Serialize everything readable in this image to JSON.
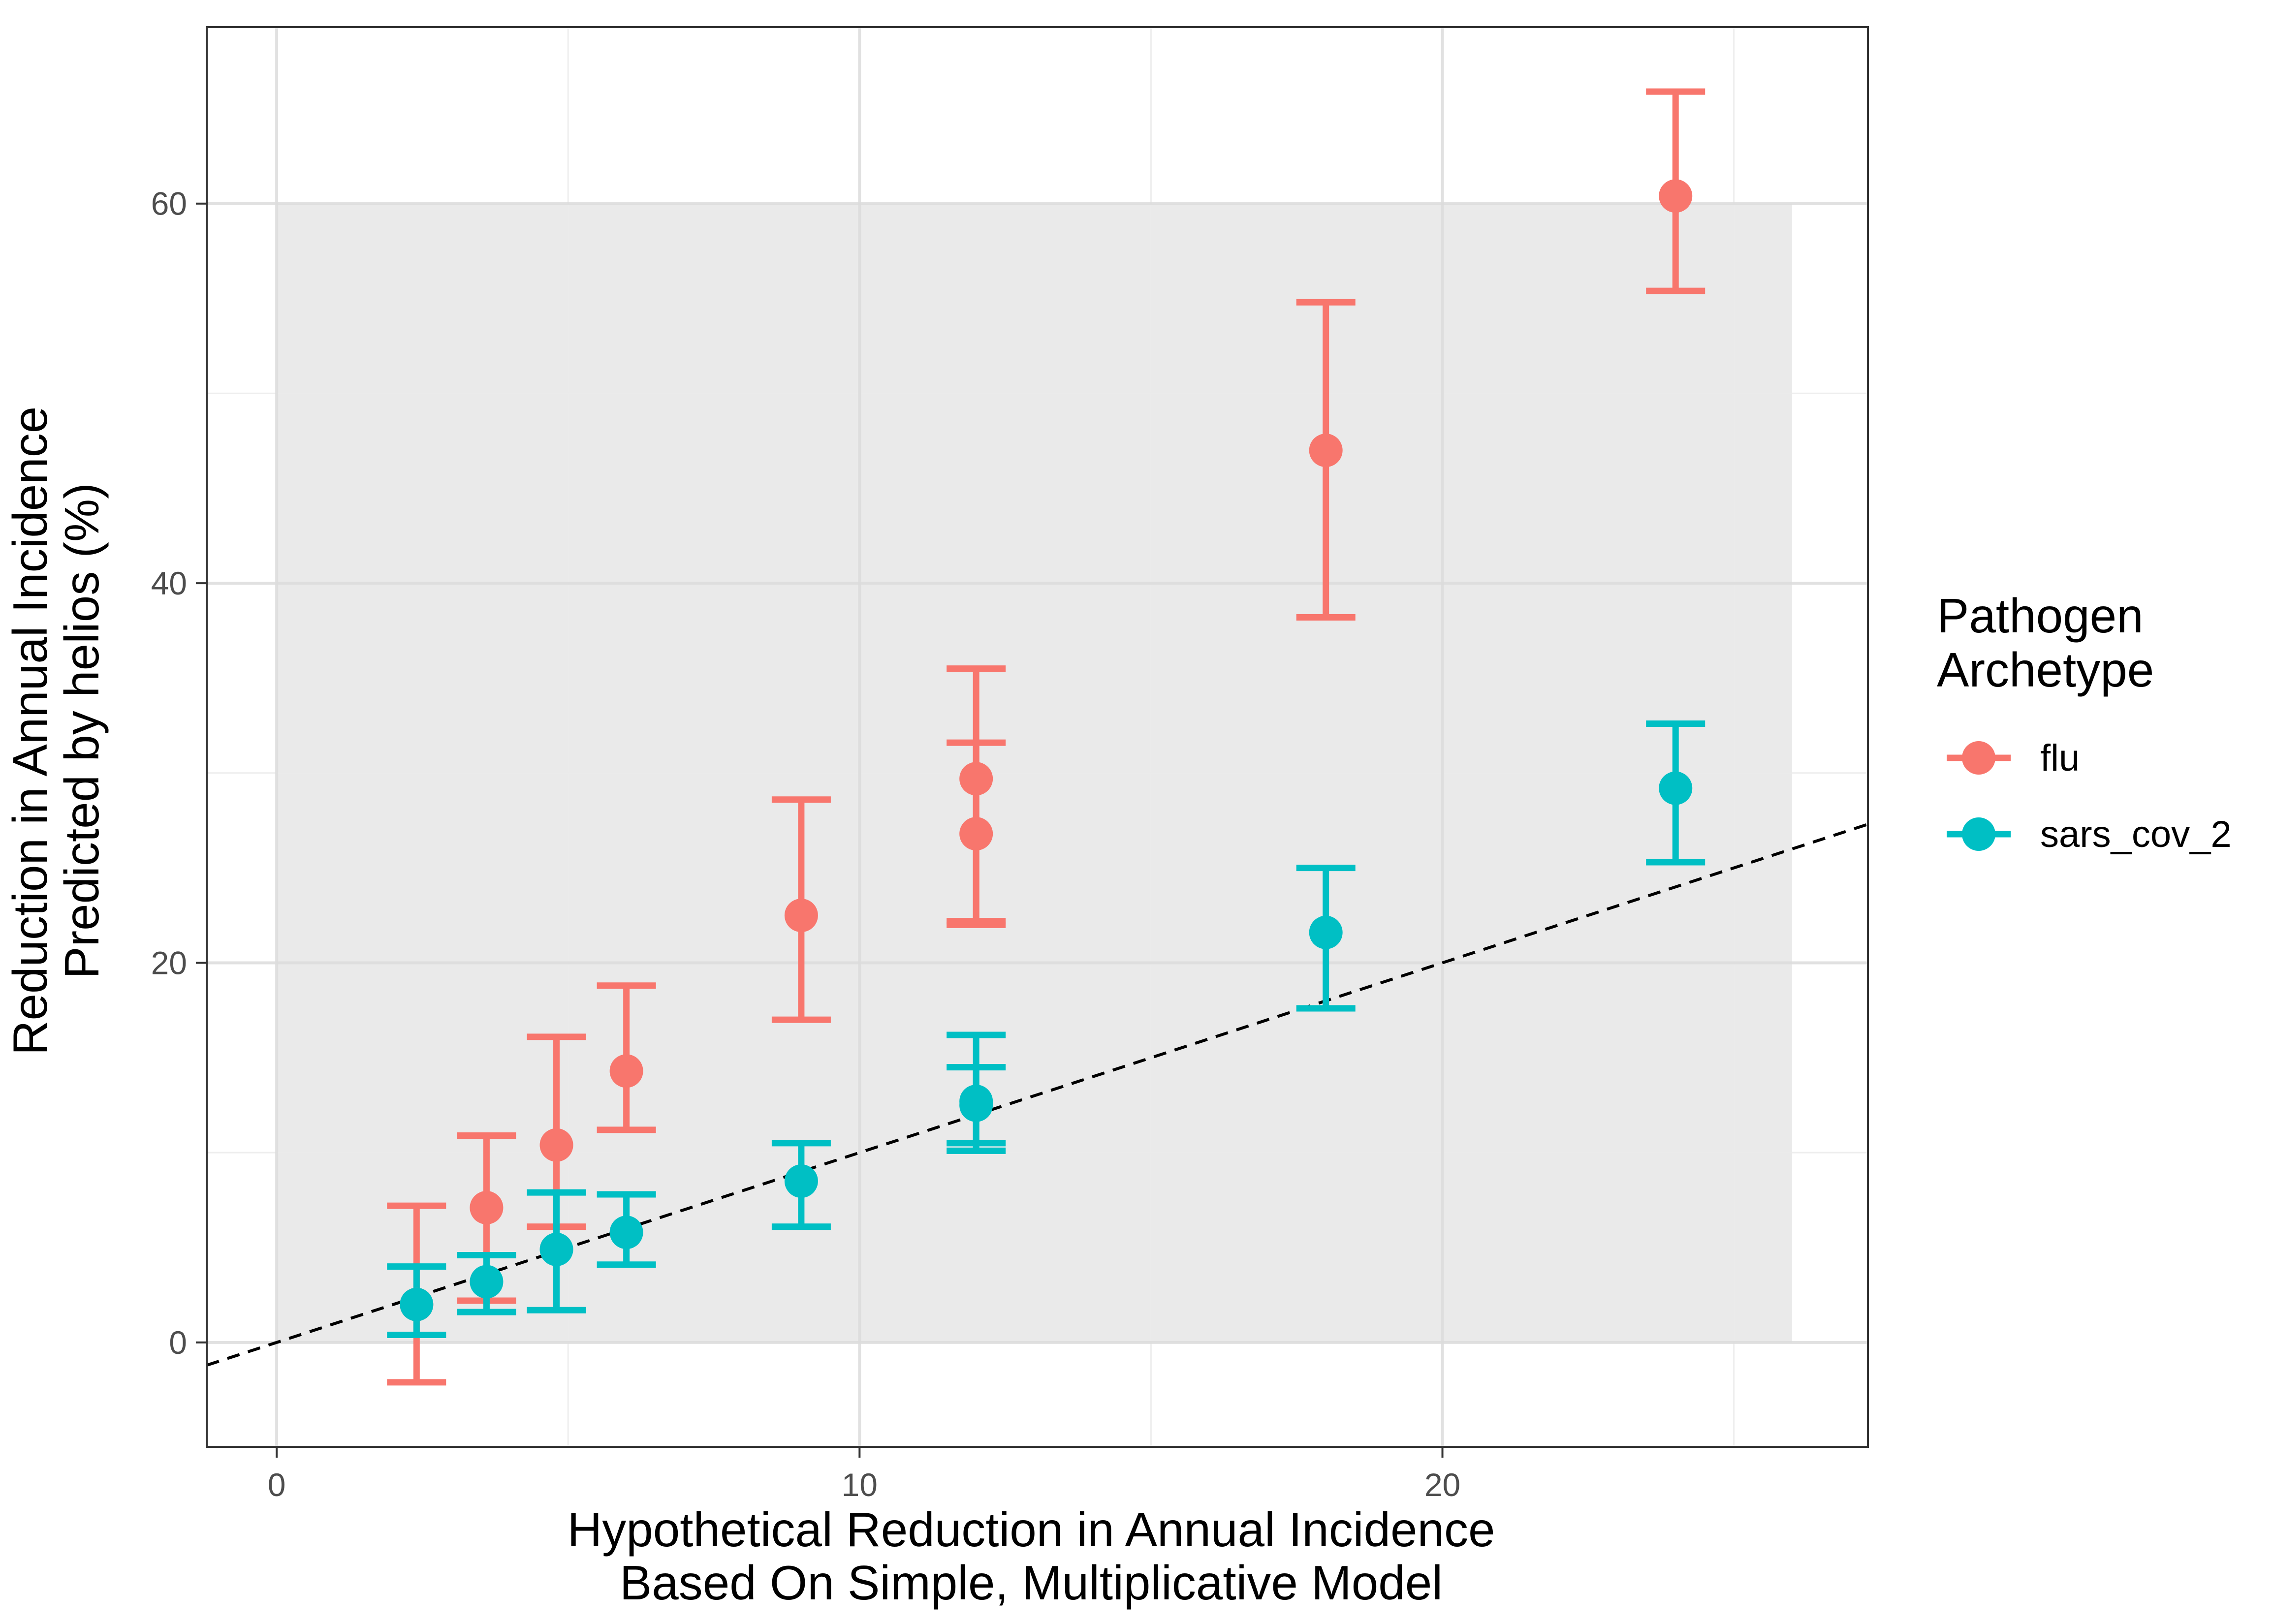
{
  "chart_data": {
    "type": "scatter",
    "xlabel": [
      "Hypothetical Reduction in Annual Incidence",
      "Based On Simple, Multiplicative Model"
    ],
    "ylabel": [
      "Reduction in Annual Incidence",
      "Predicted by helios (%)"
    ],
    "xlim": [
      -1.2,
      27.3
    ],
    "ylim": [
      -5.5,
      69.3
    ],
    "x_ticks": [
      0,
      10,
      20
    ],
    "y_ticks": [
      0,
      20,
      40,
      60
    ],
    "x_tick_labels": [
      "0",
      "10",
      "20"
    ],
    "y_tick_labels": [
      "0",
      "20",
      "40",
      "60"
    ],
    "grid": true,
    "shaded_region": {
      "x": [
        0,
        26
      ],
      "y": [
        0,
        60
      ],
      "color": "#e8e8e8"
    },
    "reference_line": {
      "type": "identity",
      "slope": 1,
      "intercept": 0,
      "style": "dashed",
      "color": "#000000"
    },
    "legend": {
      "title": [
        "Pathogen",
        "Archetype"
      ],
      "placement": "right"
    },
    "series": [
      {
        "name": "flu",
        "color": "#F8766D",
        "points": [
          {
            "x": 2.4,
            "y": 2.0,
            "ymin": -2.1,
            "ymax": 7.2
          },
          {
            "x": 3.6,
            "y": 7.1,
            "ymin": 2.2,
            "ymax": 10.9
          },
          {
            "x": 4.8,
            "y": 10.4,
            "ymin": 6.1,
            "ymax": 16.1
          },
          {
            "x": 6.0,
            "y": 14.3,
            "ymin": 11.2,
            "ymax": 18.8
          },
          {
            "x": 9.0,
            "y": 22.5,
            "ymin": 17.0,
            "ymax": 28.6
          },
          {
            "x": 12.0,
            "y": 26.8,
            "ymin": 22.0,
            "ymax": 31.6
          },
          {
            "x": 12.0,
            "y": 29.7,
            "ymin": 22.2,
            "ymax": 35.5
          },
          {
            "x": 18.0,
            "y": 47.0,
            "ymin": 38.2,
            "ymax": 54.8
          },
          {
            "x": 24.0,
            "y": 60.4,
            "ymin": 55.4,
            "ymax": 65.9
          }
        ]
      },
      {
        "name": "sars_cov_2",
        "color": "#00BFC4",
        "points": [
          {
            "x": 2.4,
            "y": 2.0,
            "ymin": 0.4,
            "ymax": 4.0
          },
          {
            "x": 3.6,
            "y": 3.2,
            "ymin": 1.6,
            "ymax": 4.6
          },
          {
            "x": 4.8,
            "y": 4.9,
            "ymin": 1.7,
            "ymax": 7.9
          },
          {
            "x": 6.0,
            "y": 5.8,
            "ymin": 4.1,
            "ymax": 7.8
          },
          {
            "x": 9.0,
            "y": 8.5,
            "ymin": 6.1,
            "ymax": 10.5
          },
          {
            "x": 12.0,
            "y": 12.7,
            "ymin": 10.1,
            "ymax": 14.5
          },
          {
            "x": 12.0,
            "y": 12.5,
            "ymin": 10.5,
            "ymax": 16.2
          },
          {
            "x": 18.0,
            "y": 21.6,
            "ymin": 17.6,
            "ymax": 25.0
          },
          {
            "x": 24.0,
            "y": 29.2,
            "ymin": 25.3,
            "ymax": 32.6
          }
        ]
      }
    ]
  }
}
